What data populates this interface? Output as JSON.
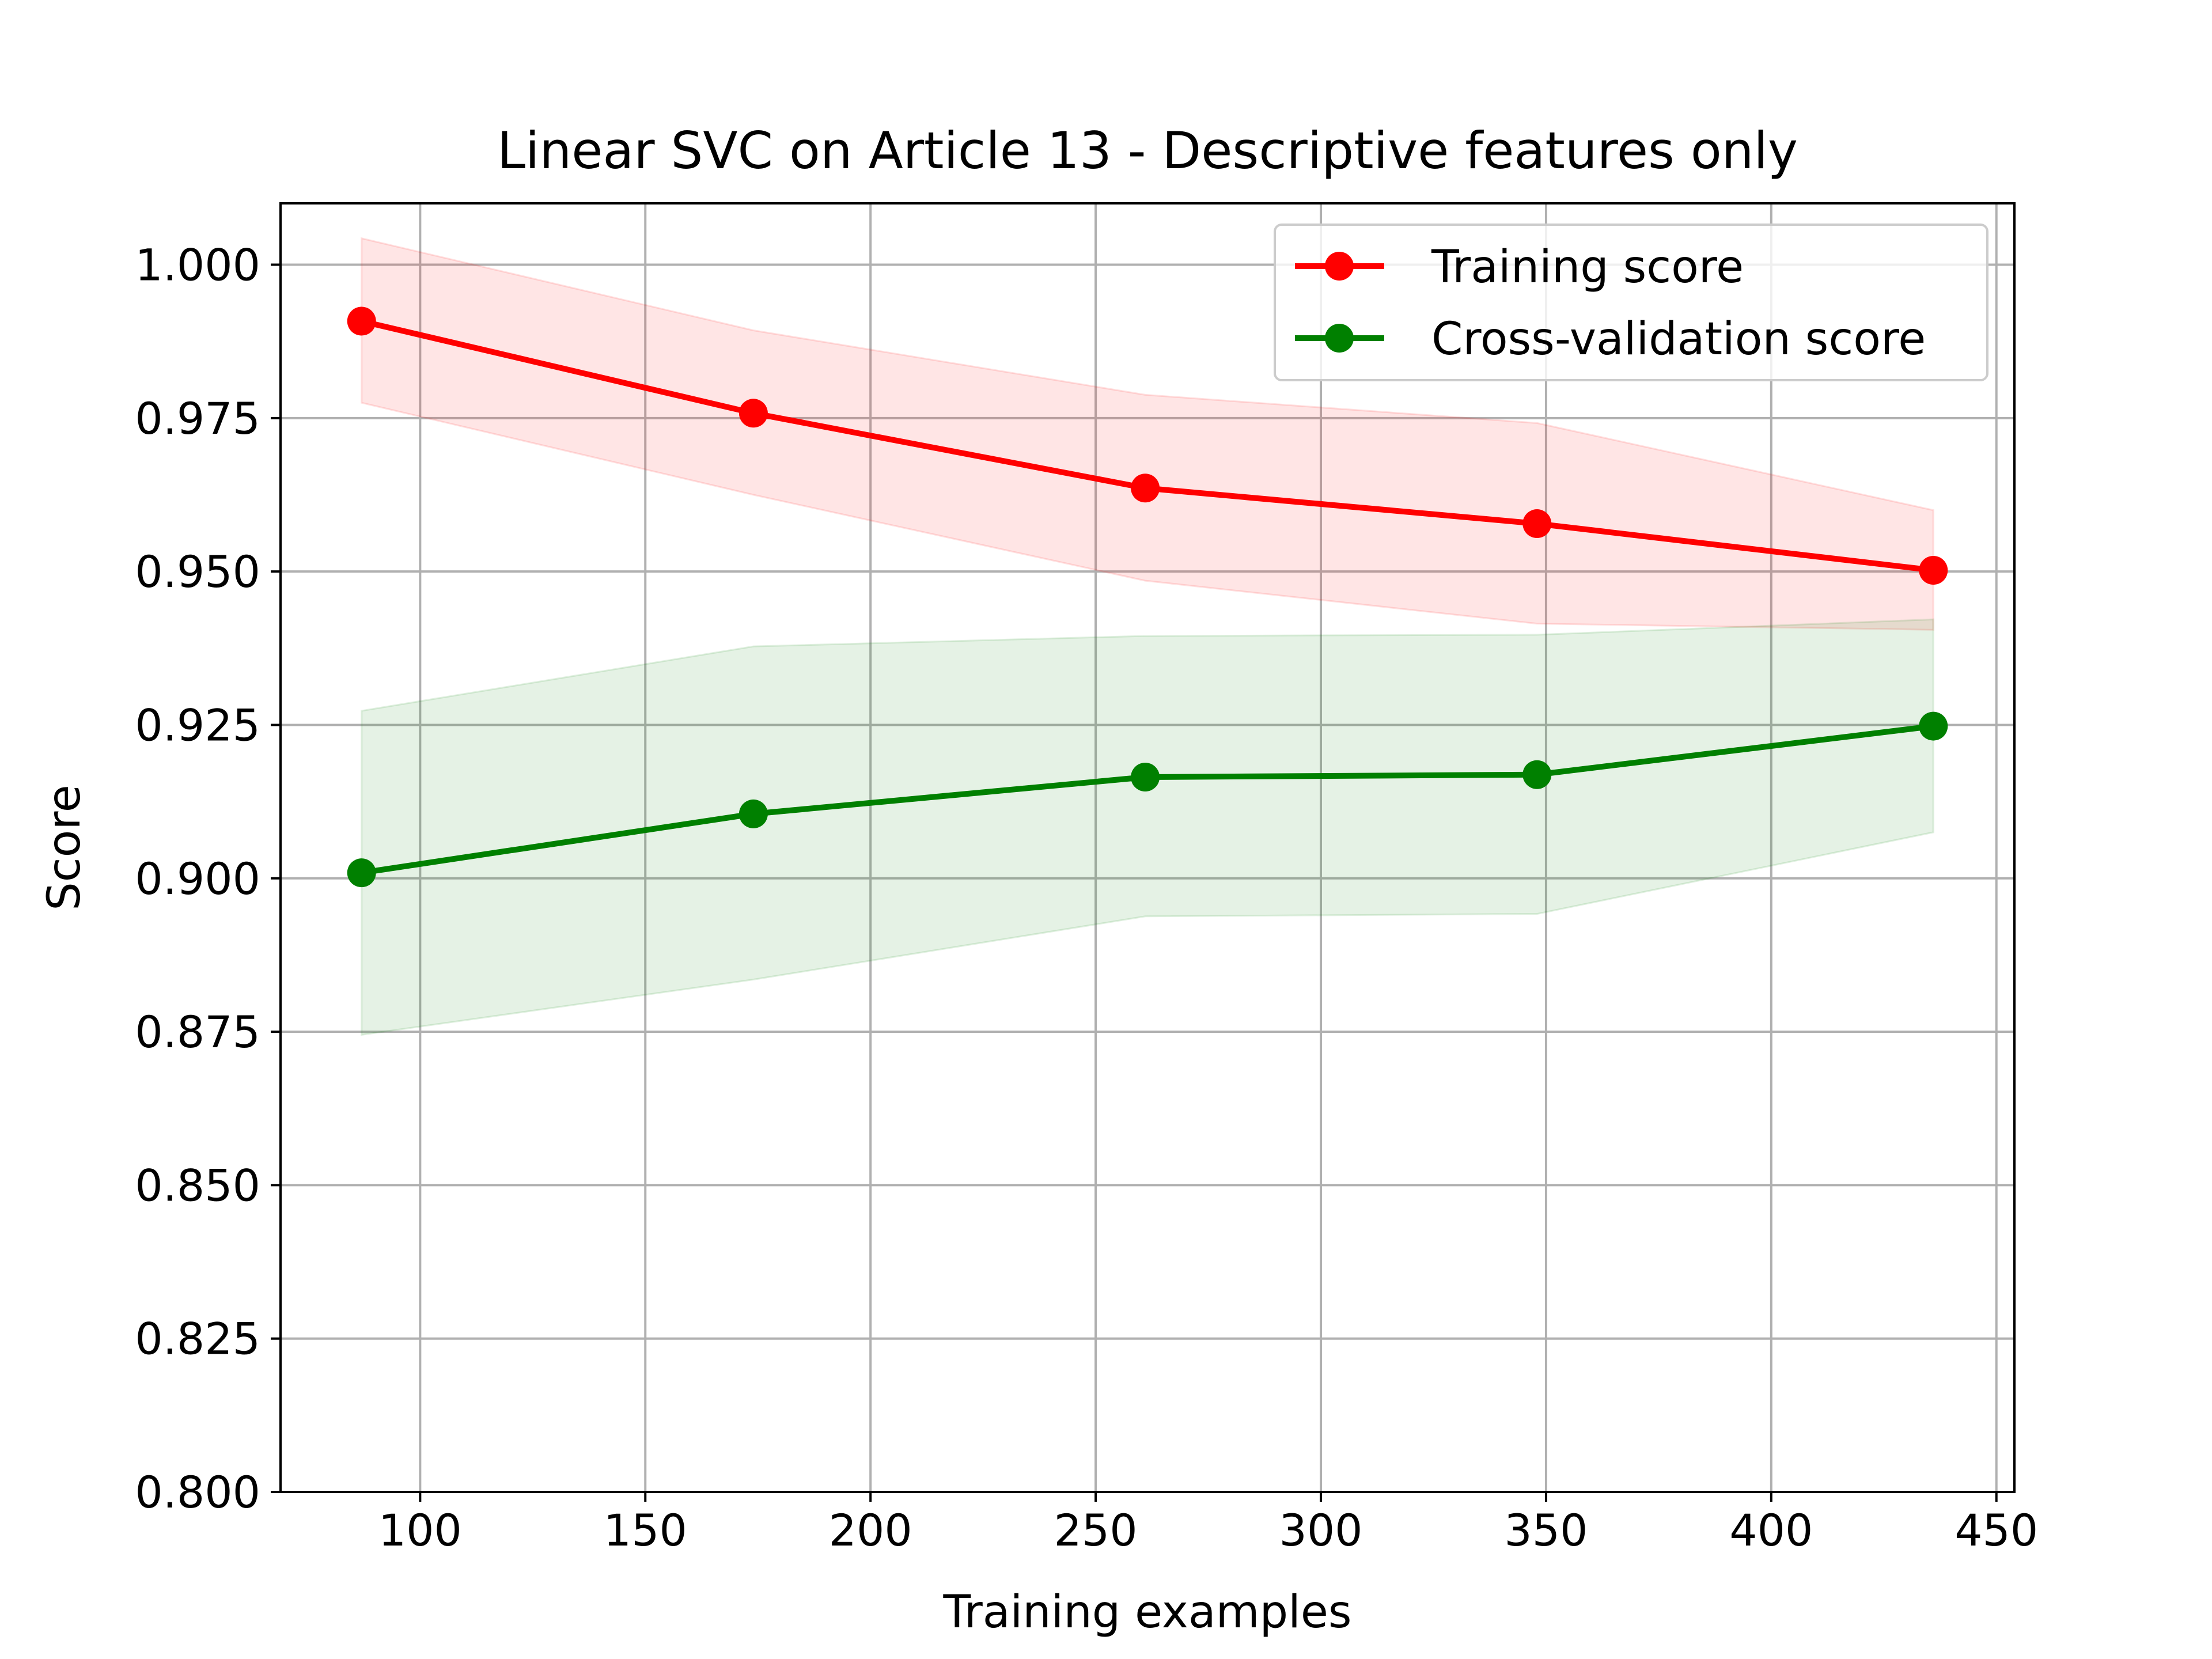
{
  "chart_data": {
    "type": "line",
    "title": "Linear SVC on Article 13 - Descriptive features only",
    "xlabel": "Training examples",
    "ylabel": "Score",
    "xlim": [
      69,
      454
    ],
    "ylim": [
      0.8,
      1.01
    ],
    "xticks": [
      100,
      150,
      200,
      250,
      300,
      350,
      400,
      450
    ],
    "xtick_labels": [
      "100",
      "150",
      "200",
      "250",
      "300",
      "350",
      "400",
      "450"
    ],
    "yticks": [
      0.8,
      0.825,
      0.85,
      0.875,
      0.9,
      0.925,
      0.95,
      0.975,
      1.0
    ],
    "ytick_labels": [
      "0.800",
      "0.825",
      "0.850",
      "0.875",
      "0.900",
      "0.925",
      "0.950",
      "0.975",
      "1.000"
    ],
    "grid": true,
    "legend_position": "top-right",
    "x": [
      87,
      174,
      261,
      348,
      436
    ],
    "series": [
      {
        "name": "Training score",
        "color": "#ff0000",
        "band_color": "#ff0000",
        "values": [
          0.9908,
          0.9758,
          0.9636,
          0.9578,
          0.9502
        ],
        "lower": [
          0.9775,
          0.9625,
          0.9485,
          0.9415,
          0.9405
        ],
        "upper": [
          1.0043,
          0.9893,
          0.9788,
          0.9742,
          0.96
        ]
      },
      {
        "name": "Cross-validation score",
        "color": "#008000",
        "band_color": "#008000",
        "values": [
          0.9009,
          0.9105,
          0.9165,
          0.9169,
          0.9248
        ],
        "lower": [
          0.8745,
          0.8835,
          0.8938,
          0.8942,
          0.9075
        ],
        "upper": [
          0.9273,
          0.9378,
          0.9395,
          0.9397,
          0.9422
        ]
      }
    ]
  }
}
